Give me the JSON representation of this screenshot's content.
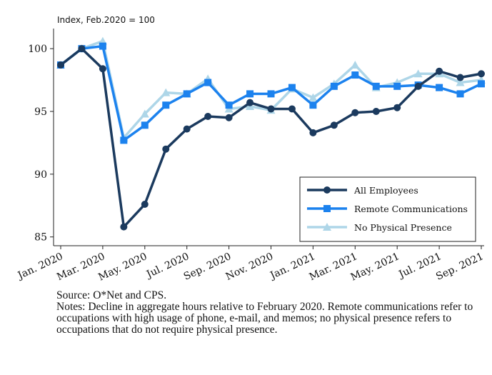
{
  "chart_data": {
    "type": "line",
    "ylabel": "Index, Feb.2020 = 100",
    "categories": [
      "Jan. 2020",
      null,
      "Mar. 2020",
      null,
      "May. 2020",
      null,
      "Jul. 2020",
      null,
      "Sep. 2020",
      null,
      "Nov. 2020",
      null,
      "Jan. 2021",
      null,
      "Mar. 2021",
      null,
      "May. 2021",
      null,
      "Jul. 2021",
      null,
      "Sep. 2021"
    ],
    "series": [
      {
        "name": "All Employees",
        "color": "#1b3a5e",
        "marker": "circle",
        "values": [
          98.7,
          100,
          98.4,
          85.8,
          87.6,
          92.0,
          93.6,
          94.6,
          94.5,
          95.7,
          95.2,
          95.2,
          93.3,
          93.9,
          94.9,
          95.0,
          95.3,
          97.0,
          98.2,
          97.7,
          98.0
        ]
      },
      {
        "name": "Remote Communications",
        "color": "#1c82ee",
        "marker": "square",
        "values": [
          98.7,
          100,
          100.2,
          92.7,
          93.9,
          95.5,
          96.4,
          97.3,
          95.5,
          96.4,
          96.4,
          96.9,
          95.5,
          97.0,
          97.9,
          97.0,
          97.0,
          97.1,
          96.9,
          96.4,
          97.2
        ]
      },
      {
        "name": "No Physical Presence",
        "color": "#aed6e8",
        "marker": "triangle",
        "values": [
          98.7,
          100,
          100.6,
          92.9,
          94.8,
          96.5,
          96.4,
          97.6,
          95.2,
          95.4,
          95.1,
          96.8,
          96.1,
          97.2,
          98.7,
          96.9,
          97.3,
          98.0,
          98.0,
          97.3,
          97.5
        ]
      }
    ],
    "ylim": [
      84.3,
      101.6
    ],
    "yticks": [
      85,
      90,
      95,
      100
    ],
    "grid": false,
    "legend": "lower right",
    "source": "Source: O*Net and CPS.",
    "notes": "Notes: Decline in aggregate hours relative to February 2020. Remote communications refer to occupations with high usage of phone, e-mail, and memos; no physical presence refers to occupations that do not require physical presence."
  }
}
